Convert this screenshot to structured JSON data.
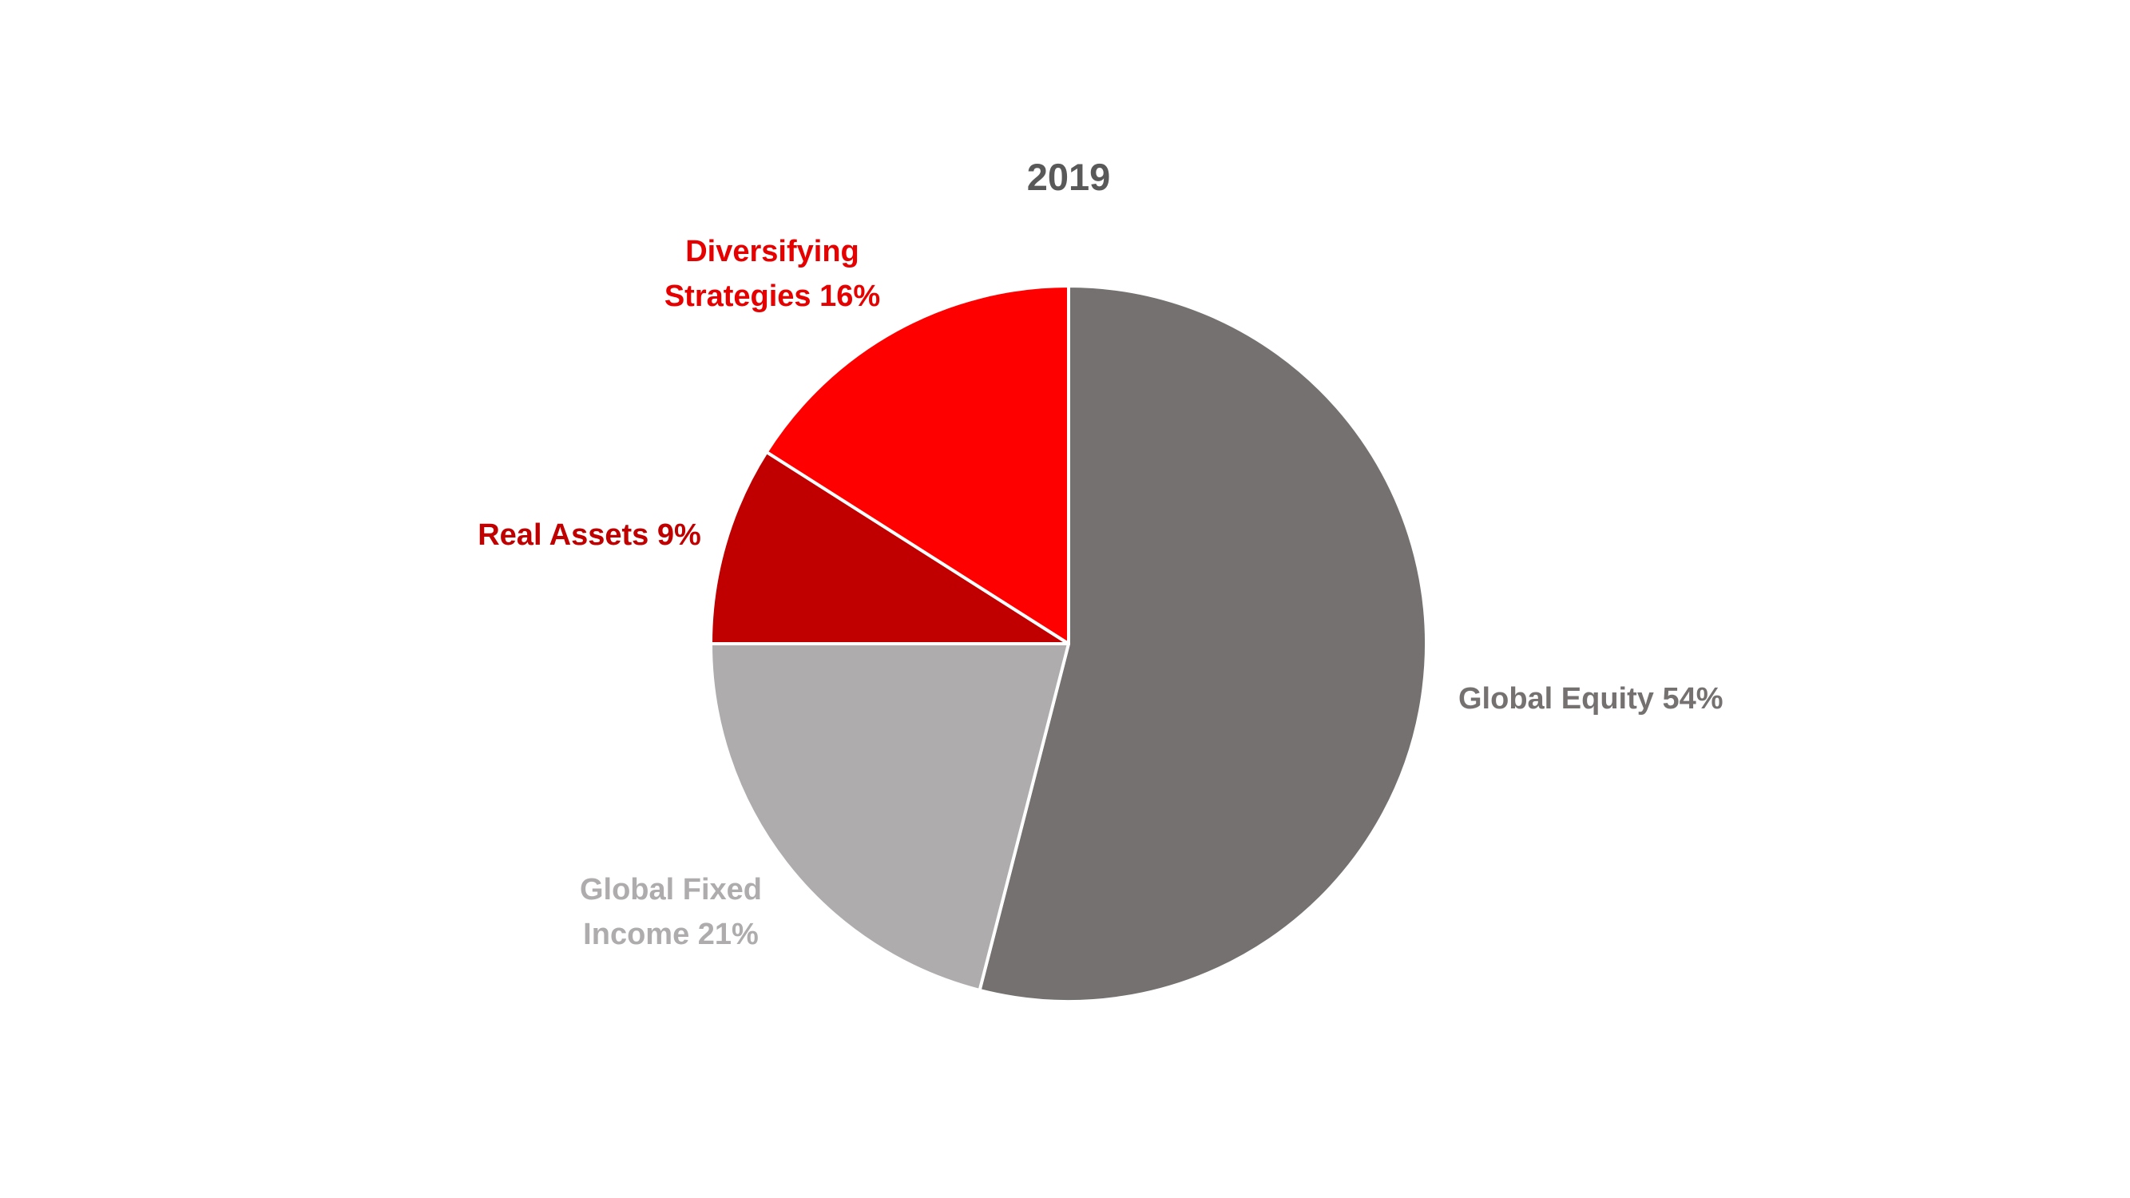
{
  "chart_data": {
    "type": "pie",
    "title": "2019",
    "title_color": "#595959",
    "start_angle": "12 o'clock",
    "direction": "clockwise",
    "slice_border_color": "#ffffff",
    "series": [
      {
        "values": [
          54,
          21,
          9,
          16
        ],
        "categories": [
          "Global Equity",
          "Global Fixed Income",
          "Real Assets",
          "Diversifying Strategies"
        ]
      }
    ],
    "slices": [
      {
        "label_lines": [
          "Global Equity 54%"
        ],
        "category": "Global Equity",
        "value": 54,
        "color": "#767171",
        "label_color": "#767171"
      },
      {
        "label_lines": [
          "Global Fixed",
          "Income 21%"
        ],
        "category": "Global Fixed Income",
        "value": 21,
        "color": "#AEACAD",
        "label_color": "#AEACAD"
      },
      {
        "label_lines": [
          "Real Assets 9%"
        ],
        "category": "Real Assets",
        "value": 9,
        "color": "#C00000",
        "label_color": "#C00000"
      },
      {
        "label_lines": [
          "Diversifying",
          "Strategies 16%"
        ],
        "category": "Diversifying Strategies",
        "value": 16,
        "color": "#FF0000",
        "label_color": "#E60000"
      }
    ]
  }
}
